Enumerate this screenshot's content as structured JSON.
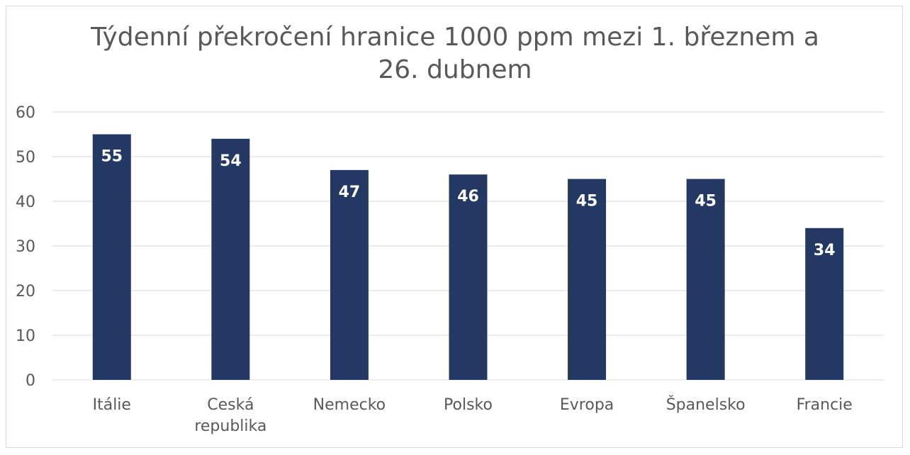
{
  "chart_data": {
    "type": "bar",
    "title_lines": [
      "Týdenní překročení hranice 1000 ppm mezi 1. březnem a",
      "26. dubnem"
    ],
    "categories": [
      [
        "Itálie"
      ],
      [
        "Ceská",
        "republika"
      ],
      [
        "Nemecko"
      ],
      [
        "Polsko"
      ],
      [
        "Evropa"
      ],
      [
        "Španelsko"
      ],
      [
        "Francie"
      ]
    ],
    "values": [
      55,
      54,
      47,
      46,
      45,
      45,
      34
    ],
    "ylim": [
      0,
      60
    ],
    "yticks": [
      0,
      10,
      20,
      30,
      40,
      50,
      60
    ],
    "grid": true,
    "legend": "none",
    "bar_color": "#233863",
    "grid_color": "#d9d9d9"
  }
}
